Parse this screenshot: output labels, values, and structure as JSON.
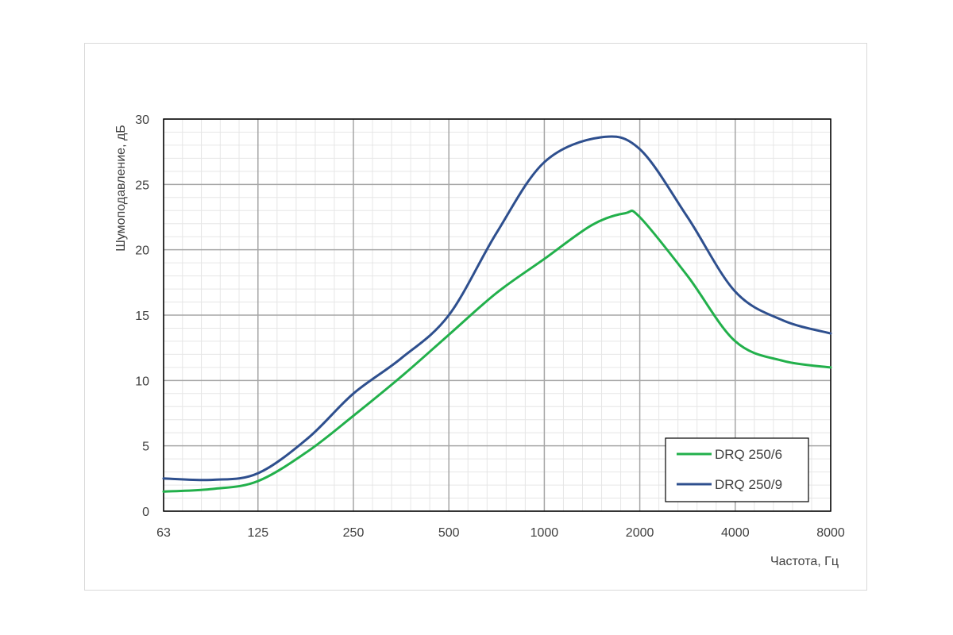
{
  "chart_data": {
    "type": "line",
    "title": "",
    "xlabel": "Частота, Гц",
    "ylabel": "Шумоподавление, дБ",
    "x_scale": "log2",
    "x": [
      63,
      125,
      250,
      500,
      1000,
      2000,
      4000,
      8000
    ],
    "x_tick_labels": [
      "63",
      "125",
      "250",
      "500",
      "1000",
      "2000",
      "4000",
      "8000"
    ],
    "ylim": [
      0,
      30
    ],
    "y_ticks": [
      0,
      5,
      10,
      15,
      20,
      25,
      30
    ],
    "grid": true,
    "legend_position": "bottom-right",
    "series": [
      {
        "name": "DRQ 250/6",
        "color": "#22b04b",
        "points": [
          [
            63,
            1.5
          ],
          [
            90,
            1.7
          ],
          [
            125,
            2.3
          ],
          [
            180,
            4.6
          ],
          [
            250,
            7.3
          ],
          [
            354,
            10.3
          ],
          [
            500,
            13.5
          ],
          [
            707,
            16.7
          ],
          [
            1000,
            19.3
          ],
          [
            1414,
            21.9
          ],
          [
            1800,
            22.8
          ],
          [
            2000,
            22.5
          ],
          [
            2828,
            18.0
          ],
          [
            4000,
            13.0
          ],
          [
            5657,
            11.5
          ],
          [
            8000,
            11.0
          ]
        ]
      },
      {
        "name": "DRQ 250/9",
        "color": "#2e4f8e",
        "points": [
          [
            63,
            2.5
          ],
          [
            90,
            2.4
          ],
          [
            125,
            2.9
          ],
          [
            180,
            5.6
          ],
          [
            250,
            9.0
          ],
          [
            354,
            11.7
          ],
          [
            500,
            15.0
          ],
          [
            707,
            21.3
          ],
          [
            1000,
            26.7
          ],
          [
            1500,
            28.6
          ],
          [
            2000,
            27.7
          ],
          [
            2828,
            22.5
          ],
          [
            4000,
            16.8
          ],
          [
            5657,
            14.6
          ],
          [
            8000,
            13.6
          ]
        ]
      }
    ]
  }
}
